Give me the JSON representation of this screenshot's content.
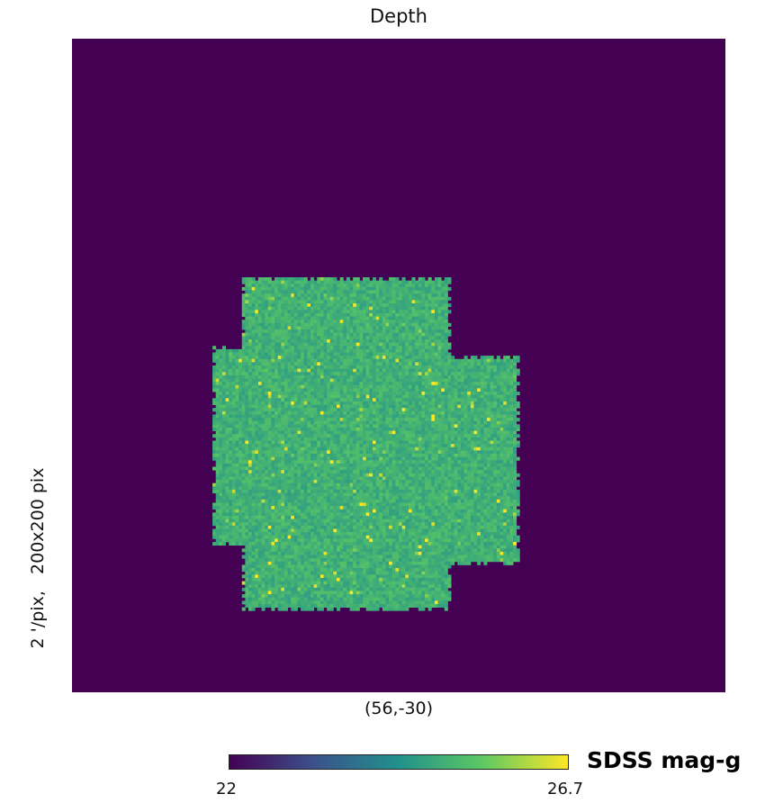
{
  "chart_data": {
    "type": "heatmap",
    "title": "Depth",
    "projection_center_label": "(56,-30)",
    "resolution_label": "2 '/pix,   200x200 pix",
    "colorbar": {
      "label": "SDSS mag-g",
      "min_label": "22",
      "max_label": "26.7",
      "min": 22,
      "max": 26.7,
      "colormap": "viridis",
      "colors": [
        "#440154",
        "#3b528b",
        "#21918c",
        "#5ec962",
        "#fde725"
      ]
    },
    "grid": {
      "cols": 200,
      "rows": 200
    },
    "background_value": 22,
    "typical_depth": 25.0,
    "depth_range_in_footprint": [
      24.6,
      26.7
    ]
  }
}
